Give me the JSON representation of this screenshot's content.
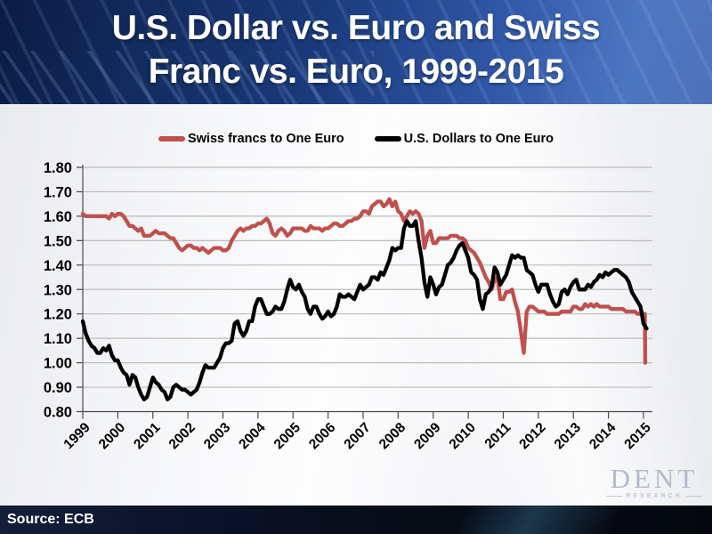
{
  "slide": {
    "title_lines": [
      "U.S. Dollar vs. Euro and Swiss",
      "Franc vs. Euro, 1999-2015"
    ],
    "source": "Source: ECB",
    "watermark": {
      "name": "DENT",
      "sub": "RESEARCH"
    }
  },
  "colors": {
    "swiss_franc_line": "#c0504d",
    "us_dollar_line": "#000000",
    "title_band": "#1a3a7a",
    "footer_band": "#0a101f",
    "grid_line": "#bcbcbc",
    "axis_line": "#4a4a4a",
    "title_text": "#ffffff"
  },
  "chart_data": {
    "type": "line",
    "title": "",
    "xlabel": "",
    "ylabel": "",
    "grid": "horizontal",
    "legend_position": "top",
    "x_axis": {
      "ticks": [
        1999,
        2000,
        2001,
        2002,
        2003,
        2004,
        2005,
        2006,
        2007,
        2008,
        2009,
        2010,
        2011,
        2012,
        2013,
        2014,
        2015
      ],
      "range": [
        1999,
        2015.25
      ],
      "unit": "year"
    },
    "y_axis": {
      "ticks": [
        0.8,
        0.9,
        1.0,
        1.1,
        1.2,
        1.3,
        1.4,
        1.5,
        1.6,
        1.7,
        1.8
      ],
      "min": 0.8,
      "max": 1.8,
      "tick_format": "0.00"
    },
    "sampling": "monthly values, x = x_start + index/12",
    "series": [
      {
        "name": "Swiss francs to One Euro",
        "color": "#c0504d",
        "x_start": 1999,
        "values": [
          1.61,
          1.6,
          1.6,
          1.6,
          1.6,
          1.6,
          1.6,
          1.6,
          1.6,
          1.59,
          1.61,
          1.6,
          1.61,
          1.61,
          1.6,
          1.58,
          1.56,
          1.56,
          1.55,
          1.54,
          1.55,
          1.52,
          1.52,
          1.52,
          1.53,
          1.54,
          1.53,
          1.53,
          1.53,
          1.52,
          1.51,
          1.51,
          1.49,
          1.47,
          1.46,
          1.47,
          1.48,
          1.48,
          1.47,
          1.47,
          1.46,
          1.47,
          1.46,
          1.45,
          1.46,
          1.47,
          1.47,
          1.47,
          1.46,
          1.46,
          1.47,
          1.5,
          1.52,
          1.54,
          1.55,
          1.54,
          1.55,
          1.55,
          1.56,
          1.56,
          1.57,
          1.57,
          1.58,
          1.59,
          1.57,
          1.53,
          1.52,
          1.54,
          1.55,
          1.54,
          1.52,
          1.53,
          1.55,
          1.55,
          1.55,
          1.55,
          1.54,
          1.54,
          1.56,
          1.55,
          1.55,
          1.55,
          1.54,
          1.55,
          1.55,
          1.56,
          1.57,
          1.57,
          1.56,
          1.56,
          1.57,
          1.58,
          1.58,
          1.59,
          1.59,
          1.6,
          1.62,
          1.62,
          1.61,
          1.64,
          1.65,
          1.66,
          1.66,
          1.64,
          1.65,
          1.67,
          1.64,
          1.66,
          1.62,
          1.61,
          1.58,
          1.6,
          1.62,
          1.61,
          1.62,
          1.61,
          1.58,
          1.47,
          1.52,
          1.54,
          1.49,
          1.49,
          1.51,
          1.51,
          1.51,
          1.51,
          1.52,
          1.52,
          1.52,
          1.51,
          1.51,
          1.5,
          1.47,
          1.46,
          1.45,
          1.43,
          1.41,
          1.38,
          1.35,
          1.33,
          1.3,
          1.34,
          1.35,
          1.26,
          1.26,
          1.29,
          1.29,
          1.3,
          1.25,
          1.21,
          1.13,
          1.04,
          1.21,
          1.23,
          1.23,
          1.22,
          1.21,
          1.21,
          1.21,
          1.2,
          1.2,
          1.2,
          1.2,
          1.2,
          1.21,
          1.21,
          1.21,
          1.21,
          1.23,
          1.23,
          1.22,
          1.22,
          1.24,
          1.23,
          1.24,
          1.23,
          1.24,
          1.23,
          1.23,
          1.23,
          1.23,
          1.22,
          1.22,
          1.22,
          1.22,
          1.22,
          1.21,
          1.21,
          1.21,
          1.21,
          1.2,
          1.2
        ],
        "extra_points": [
          [
            2015.0,
            1.2
          ],
          [
            2015.04,
            1.2
          ],
          [
            2015.05,
            1.0
          ]
        ]
      },
      {
        "name": "U.S. Dollars to One Euro",
        "color": "#000000",
        "x_start": 1999,
        "values": [
          1.17,
          1.12,
          1.09,
          1.07,
          1.06,
          1.04,
          1.04,
          1.06,
          1.05,
          1.07,
          1.03,
          1.01,
          1.01,
          0.98,
          0.96,
          0.95,
          0.91,
          0.95,
          0.94,
          0.9,
          0.87,
          0.85,
          0.86,
          0.9,
          0.94,
          0.92,
          0.91,
          0.89,
          0.88,
          0.85,
          0.86,
          0.9,
          0.91,
          0.9,
          0.89,
          0.89,
          0.88,
          0.87,
          0.88,
          0.89,
          0.92,
          0.96,
          0.99,
          0.98,
          0.98,
          0.98,
          1.0,
          1.02,
          1.06,
          1.08,
          1.08,
          1.09,
          1.16,
          1.17,
          1.13,
          1.11,
          1.13,
          1.17,
          1.17,
          1.23,
          1.26,
          1.26,
          1.23,
          1.2,
          1.2,
          1.21,
          1.23,
          1.22,
          1.22,
          1.25,
          1.3,
          1.34,
          1.31,
          1.3,
          1.32,
          1.29,
          1.27,
          1.22,
          1.2,
          1.23,
          1.23,
          1.2,
          1.18,
          1.19,
          1.21,
          1.19,
          1.2,
          1.23,
          1.28,
          1.27,
          1.27,
          1.28,
          1.27,
          1.26,
          1.29,
          1.32,
          1.3,
          1.31,
          1.32,
          1.35,
          1.35,
          1.34,
          1.37,
          1.36,
          1.39,
          1.42,
          1.47,
          1.46,
          1.47,
          1.47,
          1.55,
          1.58,
          1.56,
          1.56,
          1.58,
          1.5,
          1.43,
          1.33,
          1.27,
          1.35,
          1.32,
          1.28,
          1.31,
          1.32,
          1.36,
          1.4,
          1.41,
          1.43,
          1.46,
          1.48,
          1.49,
          1.46,
          1.43,
          1.37,
          1.36,
          1.34,
          1.26,
          1.22,
          1.28,
          1.29,
          1.31,
          1.39,
          1.37,
          1.32,
          1.34,
          1.36,
          1.4,
          1.44,
          1.43,
          1.44,
          1.43,
          1.43,
          1.38,
          1.37,
          1.36,
          1.32,
          1.29,
          1.32,
          1.32,
          1.32,
          1.28,
          1.25,
          1.23,
          1.24,
          1.29,
          1.3,
          1.28,
          1.31,
          1.33,
          1.34,
          1.3,
          1.3,
          1.3,
          1.32,
          1.31,
          1.33,
          1.34,
          1.36,
          1.35,
          1.37,
          1.36,
          1.37,
          1.38,
          1.38,
          1.37,
          1.36,
          1.35,
          1.33,
          1.29,
          1.27,
          1.25,
          1.23
        ],
        "extra_points": [
          [
            2015.0,
            1.16
          ],
          [
            2015.09,
            1.14
          ]
        ]
      }
    ]
  }
}
